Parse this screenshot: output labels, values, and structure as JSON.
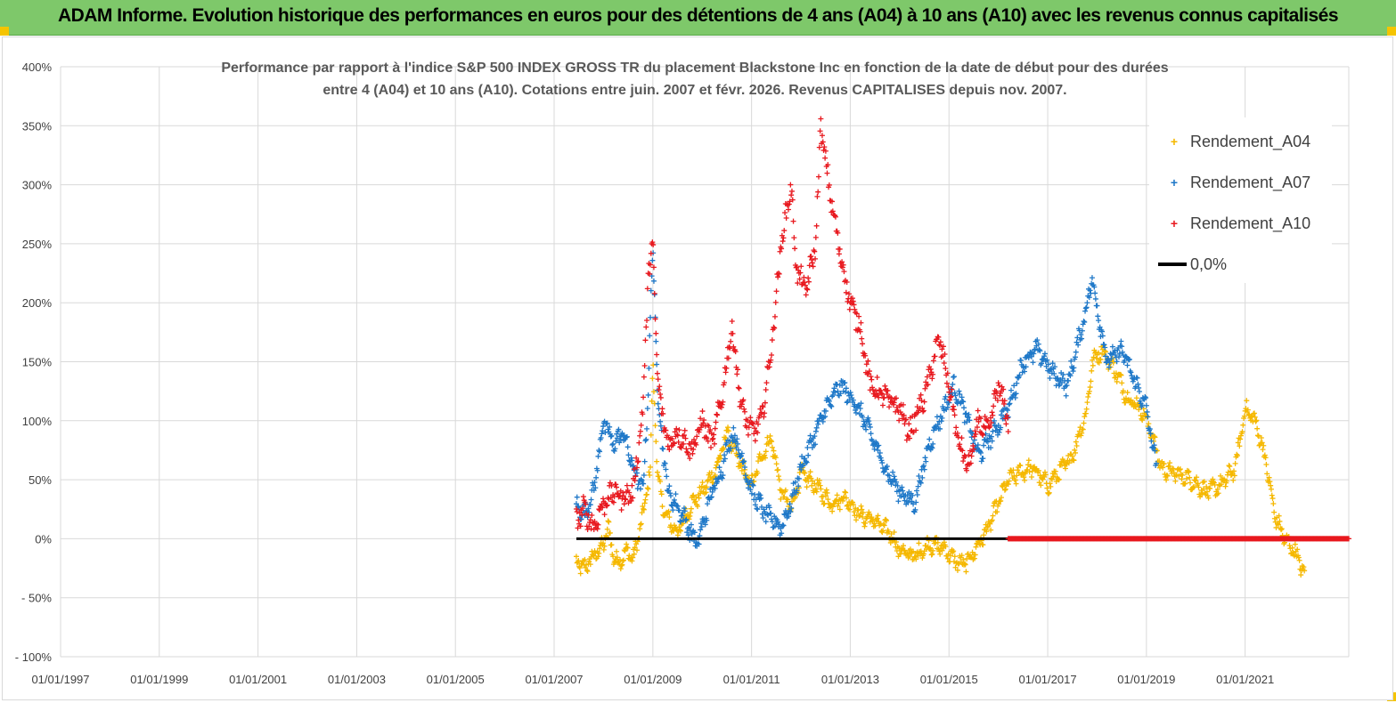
{
  "banner": {
    "title": "ADAM Informe. Evolution historique des performances en euros pour des détentions de 4 ans (A04) à 10 ans (A10) avec les revenus connus capitalisés"
  },
  "colors": {
    "banner_bg": "#7ec86a",
    "A04": "#f5b800",
    "A07": "#1f78c8",
    "A10": "#e8191f",
    "zero": "#000000"
  },
  "chart_data": {
    "type": "scatter",
    "title_line1": "Performance par rapport à l'indice S&P 500 INDEX GROSS TR  du placement Blackstone Inc en fonction de la date de début pour des durées",
    "title_line2": "entre 4 (A04) et 10 ans (A10). Cotations entre juin. 2007 et févr. 2026. Revenus CAPITALISES depuis nov. 2007.",
    "xlabel": "",
    "ylabel": "",
    "x_tick_labels": [
      "01/01/1997",
      "01/01/1999",
      "01/01/2001",
      "01/01/2003",
      "01/01/2005",
      "01/01/2007",
      "01/01/2009",
      "01/01/2011",
      "01/01/2013",
      "01/01/2015",
      "01/01/2017",
      "01/01/2019",
      "01/01/2021"
    ],
    "xlim": [
      1997.0,
      2023.1
    ],
    "y_tick_labels": [
      "400%",
      "350%",
      "300%",
      "250%",
      "200%",
      "150%",
      "100%",
      "50%",
      "0%",
      "- 50%",
      "- 100%"
    ],
    "y_tick_values": [
      400,
      350,
      300,
      250,
      200,
      150,
      100,
      50,
      0,
      -50,
      -100
    ],
    "ylim": [
      -100,
      400
    ],
    "grid": true,
    "legend_position": "top-right",
    "series": [
      {
        "name": "Rendement_A04",
        "marker": "+",
        "x": [
          2007.45,
          2007.6,
          2007.8,
          2008.0,
          2008.1,
          2008.2,
          2008.3,
          2008.5,
          2008.6,
          2008.8,
          2008.95,
          2009.0,
          2009.1,
          2009.25,
          2009.5,
          2009.8,
          2010.0,
          2010.3,
          2010.5,
          2010.8,
          2011.0,
          2011.2,
          2011.4,
          2011.6,
          2011.8,
          2012.0,
          2012.3,
          2012.6,
          2012.9,
          2013.2,
          2013.5,
          2013.8,
          2014.0,
          2014.3,
          2014.6,
          2014.9,
          2015.1,
          2015.3,
          2015.5,
          2015.8,
          2016.0,
          2016.2,
          2016.4,
          2016.7,
          2017.0,
          2017.3,
          2017.5,
          2017.8,
          2017.9,
          2018.1,
          2018.4,
          2018.6,
          2018.9,
          2019.1,
          2019.3,
          2019.6,
          2019.9,
          2020.2,
          2020.5,
          2020.8,
          2021.0,
          2021.2,
          2021.4,
          2021.6,
          2021.8,
          2022.0,
          2022.2
        ],
        "y": [
          -20,
          -25,
          -15,
          -5,
          10,
          -15,
          -20,
          -10,
          -18,
          20,
          60,
          150,
          50,
          20,
          5,
          30,
          40,
          60,
          90,
          60,
          45,
          70,
          85,
          40,
          25,
          55,
          45,
          30,
          35,
          20,
          15,
          5,
          -10,
          -15,
          -5,
          -8,
          -18,
          -22,
          -12,
          10,
          30,
          50,
          55,
          60,
          45,
          60,
          70,
          110,
          150,
          160,
          140,
          120,
          110,
          90,
          60,
          55,
          50,
          40,
          45,
          60,
          110,
          100,
          70,
          20,
          0,
          -10,
          -30
        ]
      },
      {
        "name": "Rendement_A07",
        "marker": "+",
        "x": [
          2007.45,
          2007.6,
          2007.8,
          2008.0,
          2008.2,
          2008.4,
          2008.6,
          2008.8,
          2008.9,
          2009.0,
          2009.1,
          2009.3,
          2009.6,
          2009.9,
          2010.2,
          2010.4,
          2010.6,
          2010.8,
          2011.0,
          2011.3,
          2011.6,
          2011.8,
          2012.0,
          2012.2,
          2012.5,
          2012.8,
          2013.1,
          2013.4,
          2013.7,
          2014.0,
          2014.3,
          2014.6,
          2014.9,
          2015.1,
          2015.3,
          2015.6,
          2015.9,
          2016.2,
          2016.5,
          2016.8,
          2017.1,
          2017.4,
          2017.7,
          2017.9,
          2018.2,
          2018.5,
          2018.8,
          2019.0,
          2019.2
        ],
        "y": [
          30,
          20,
          40,
          100,
          80,
          90,
          60,
          40,
          120,
          250,
          120,
          40,
          20,
          -5,
          40,
          60,
          90,
          70,
          40,
          20,
          10,
          30,
          60,
          80,
          110,
          130,
          115,
          90,
          60,
          40,
          30,
          80,
          110,
          130,
          110,
          70,
          90,
          110,
          150,
          160,
          140,
          130,
          180,
          220,
          150,
          160,
          130,
          110,
          60
        ]
      },
      {
        "name": "Rendement_A10",
        "marker": "+",
        "x": [
          2007.45,
          2007.6,
          2007.8,
          2008.0,
          2008.2,
          2008.4,
          2008.6,
          2008.8,
          2008.9,
          2009.0,
          2009.1,
          2009.3,
          2009.5,
          2009.8,
          2010.0,
          2010.2,
          2010.4,
          2010.6,
          2010.8,
          2011.0,
          2011.2,
          2011.4,
          2011.6,
          2011.8,
          2011.9,
          2012.1,
          2012.3,
          2012.4,
          2012.6,
          2012.8,
          2013.0,
          2013.2,
          2013.4,
          2013.7,
          2014.0,
          2014.2,
          2014.5,
          2014.8,
          2015.0,
          2015.2,
          2015.4,
          2015.6,
          2015.8,
          2016.0,
          2016.2
        ],
        "y": [
          15,
          25,
          10,
          30,
          40,
          35,
          40,
          110,
          220,
          250,
          130,
          80,
          90,
          75,
          100,
          80,
          120,
          180,
          110,
          90,
          100,
          160,
          250,
          300,
          230,
          210,
          250,
          350,
          290,
          240,
          200,
          180,
          130,
          120,
          110,
          90,
          120,
          170,
          130,
          80,
          60,
          100,
          90,
          130,
          100
        ]
      }
    ],
    "zero_line": {
      "name": "0,0%",
      "x_start": 2007.45,
      "x_end": 2023.1,
      "value": 0
    },
    "a10_flat_from": 2016.2
  }
}
